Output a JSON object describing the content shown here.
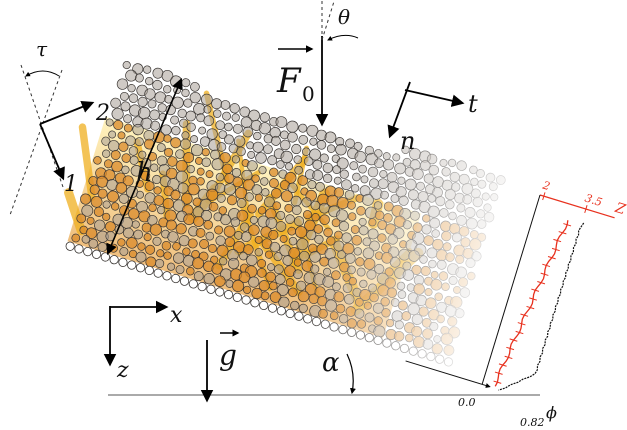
{
  "labels": {
    "tau": "τ",
    "axis_1": "1",
    "axis_2": "2",
    "h": "h",
    "F0_symbol": "F",
    "F0_sub": "0",
    "theta": "θ",
    "t": "t",
    "n": "n",
    "x": "x",
    "z": "z",
    "g": "g",
    "alpha": "α"
  },
  "profile": {
    "z_label": "Z",
    "z_tick_low": "2",
    "z_tick_high": "3.5",
    "phi_label": "ϕ",
    "phi_tick_low": "0.0",
    "phi_tick_high": "0.82"
  },
  "colors": {
    "grain_fill": "#a79f96",
    "grain_stroke": "#3a3633",
    "force_chain": "#f0b020",
    "profile_red": "#e8311e",
    "profile_black": "#111111",
    "guide": "#555555"
  },
  "icons": [
    "force-arrow-icon",
    "gravity-arrow-icon",
    "axis-arrow-icon"
  ]
}
